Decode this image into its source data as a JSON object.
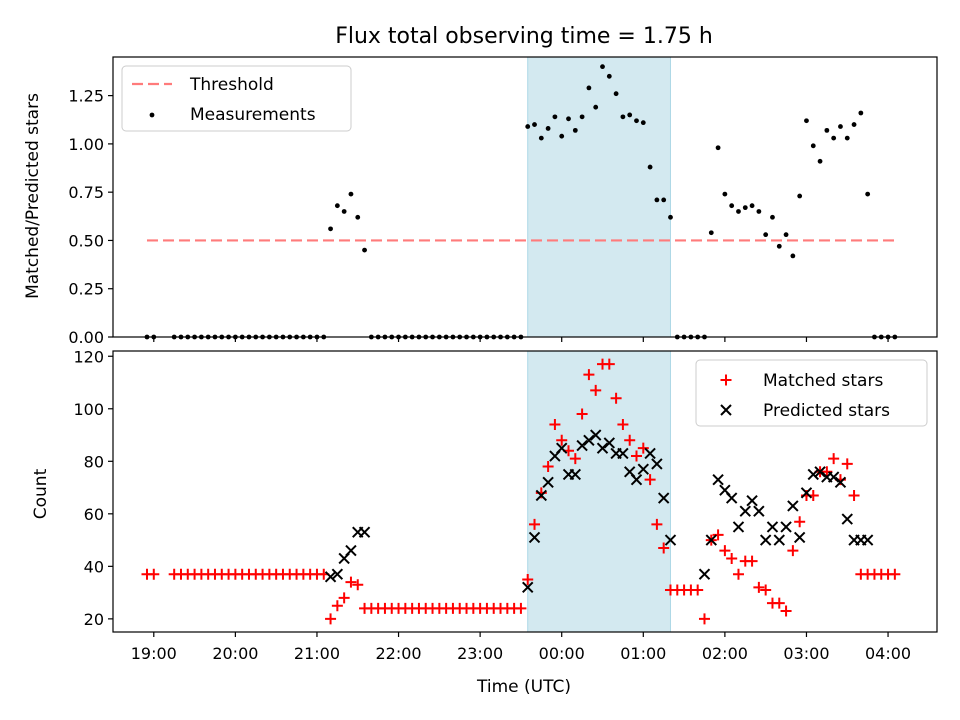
{
  "chart_data": [
    {
      "type": "scatter",
      "title": "Flux total observing time = 1.75 h",
      "ylabel": "Matched/Predicted stars",
      "xlabel": "",
      "x_unit": "hours since 19:00 UTC",
      "xlim": [
        -0.5,
        9.6
      ],
      "ylim": [
        0,
        1.45
      ],
      "yticks": [
        "0.00",
        "0.25",
        "0.50",
        "0.75",
        "1.00",
        "1.25"
      ],
      "legend": {
        "position": "top-left",
        "entries": [
          "Threshold",
          "Measurements"
        ]
      },
      "shaded_region": {
        "x_start": "23:35",
        "x_end": "01:20",
        "color": "#d3e9f0"
      },
      "threshold": {
        "name": "Threshold",
        "y": 0.5,
        "x_start": "18:55",
        "x_end": "04:05",
        "color": "#ff7b7b"
      },
      "series": [
        {
          "name": "Measurements",
          "color": "#000000",
          "x": [
            "18:55",
            "19:00",
            "19:15",
            "19:20",
            "19:25",
            "19:30",
            "19:35",
            "19:40",
            "19:45",
            "19:50",
            "19:55",
            "20:00",
            "20:05",
            "20:10",
            "20:15",
            "20:20",
            "20:25",
            "20:30",
            "20:35",
            "20:40",
            "20:45",
            "20:50",
            "20:55",
            "21:00",
            "21:05",
            "21:10",
            "21:15",
            "21:20",
            "21:25",
            "21:30",
            "21:35",
            "21:40",
            "21:45",
            "21:50",
            "21:55",
            "22:00",
            "22:05",
            "22:10",
            "22:15",
            "22:20",
            "22:25",
            "22:30",
            "22:35",
            "22:40",
            "22:45",
            "22:50",
            "22:55",
            "23:00",
            "23:05",
            "23:10",
            "23:15",
            "23:20",
            "23:25",
            "23:30",
            "23:35",
            "23:40",
            "23:45",
            "23:50",
            "23:55",
            "00:00",
            "00:05",
            "00:10",
            "00:15",
            "00:20",
            "00:25",
            "00:30",
            "00:35",
            "00:40",
            "00:45",
            "00:50",
            "00:55",
            "01:00",
            "01:05",
            "01:10",
            "01:15",
            "01:20",
            "01:25",
            "01:30",
            "01:35",
            "01:40",
            "01:45",
            "01:50",
            "01:55",
            "02:00",
            "02:05",
            "02:10",
            "02:15",
            "02:20",
            "02:25",
            "02:30",
            "02:35",
            "02:40",
            "02:45",
            "02:50",
            "02:55",
            "03:00",
            "03:05",
            "03:10",
            "03:15",
            "03:20",
            "03:25",
            "03:30",
            "03:35",
            "03:40",
            "03:45",
            "03:50",
            "03:55",
            "04:00",
            "04:05"
          ],
          "y": [
            0,
            0,
            0,
            0,
            0,
            0,
            0,
            0,
            0,
            0,
            0,
            0,
            0,
            0,
            0,
            0,
            0,
            0,
            0,
            0,
            0,
            0,
            0,
            0,
            0,
            0.56,
            0.68,
            0.65,
            0.74,
            0.62,
            0.45,
            0,
            0,
            0,
            0,
            0,
            0,
            0,
            0,
            0,
            0,
            0,
            0,
            0,
            0,
            0,
            0,
            0,
            0,
            0,
            0,
            0,
            0,
            0,
            1.09,
            1.1,
            1.03,
            1.08,
            1.14,
            1.04,
            1.13,
            1.07,
            1.14,
            1.29,
            1.19,
            1.4,
            1.35,
            1.26,
            1.14,
            1.15,
            1.12,
            1.11,
            0.88,
            0.71,
            0.71,
            0.62,
            0,
            0,
            0,
            0,
            0,
            0.54,
            0.98,
            0.74,
            0.68,
            0.65,
            0.67,
            0.68,
            0.65,
            0.53,
            0.62,
            0.47,
            0.53,
            0.42,
            0.73,
            1.12,
            0.99,
            0.91,
            1.07,
            1.03,
            1.09,
            1.03,
            1.1,
            1.16,
            0.74,
            0,
            0,
            0,
            0
          ]
        }
      ]
    },
    {
      "type": "scatter",
      "title": "",
      "ylabel": "Count",
      "xlabel": "Time (UTC)",
      "xlim": [
        -0.5,
        9.6
      ],
      "ylim": [
        15,
        122
      ],
      "yticks": [
        "20",
        "40",
        "60",
        "80",
        "100",
        "120"
      ],
      "xticks": [
        "19:00",
        "20:00",
        "21:00",
        "22:00",
        "23:00",
        "00:00",
        "01:00",
        "02:00",
        "03:00",
        "04:00"
      ],
      "legend": {
        "position": "top-right",
        "entries": [
          "Matched stars",
          "Predicted stars"
        ]
      },
      "shaded_region": {
        "x_start": "23:35",
        "x_end": "01:20",
        "color": "#d3e9f0"
      },
      "series": [
        {
          "name": "Matched stars",
          "marker": "+",
          "color": "#ff0000",
          "x": [
            "18:55",
            "19:00",
            "19:15",
            "19:20",
            "19:25",
            "19:30",
            "19:35",
            "19:40",
            "19:45",
            "19:50",
            "19:55",
            "20:00",
            "20:05",
            "20:10",
            "20:15",
            "20:20",
            "20:25",
            "20:30",
            "20:35",
            "20:40",
            "20:45",
            "20:50",
            "20:55",
            "21:00",
            "21:05",
            "21:10",
            "21:15",
            "21:20",
            "21:25",
            "21:30",
            "21:35",
            "21:40",
            "21:45",
            "21:50",
            "21:55",
            "22:00",
            "22:05",
            "22:10",
            "22:15",
            "22:20",
            "22:25",
            "22:30",
            "22:35",
            "22:40",
            "22:45",
            "22:50",
            "22:55",
            "23:00",
            "23:05",
            "23:10",
            "23:15",
            "23:20",
            "23:25",
            "23:30",
            "23:35",
            "23:40",
            "23:45",
            "23:50",
            "23:55",
            "00:00",
            "00:05",
            "00:10",
            "00:15",
            "00:20",
            "00:25",
            "00:30",
            "00:35",
            "00:40",
            "00:45",
            "00:50",
            "00:55",
            "01:00",
            "01:05",
            "01:10",
            "01:15",
            "01:20",
            "01:25",
            "01:30",
            "01:35",
            "01:40",
            "01:45",
            "01:50",
            "01:55",
            "02:00",
            "02:05",
            "02:10",
            "02:15",
            "02:20",
            "02:25",
            "02:30",
            "02:35",
            "02:40",
            "02:45",
            "02:50",
            "02:55",
            "03:00",
            "03:05",
            "03:10",
            "03:15",
            "03:20",
            "03:25",
            "03:30",
            "03:35",
            "03:40",
            "03:45",
            "03:50",
            "03:55",
            "04:00",
            "04:05"
          ],
          "y": [
            37,
            37,
            37,
            37,
            37,
            37,
            37,
            37,
            37,
            37,
            37,
            37,
            37,
            37,
            37,
            37,
            37,
            37,
            37,
            37,
            37,
            37,
            37,
            37,
            37,
            20,
            25,
            28,
            34,
            33,
            24,
            24,
            24,
            24,
            24,
            24,
            24,
            24,
            24,
            24,
            24,
            24,
            24,
            24,
            24,
            24,
            24,
            24,
            24,
            24,
            24,
            24,
            24,
            24,
            35,
            56,
            68,
            78,
            94,
            88,
            84,
            81,
            98,
            113,
            107,
            117,
            117,
            104,
            94,
            88,
            82,
            85,
            73,
            56,
            47,
            31,
            31,
            31,
            31,
            31,
            20,
            50,
            52,
            46,
            43,
            37,
            42,
            42,
            32,
            31,
            26,
            26,
            23,
            46,
            57,
            67,
            67,
            76,
            76,
            81,
            73,
            79,
            67,
            37,
            37,
            37,
            37,
            37,
            37
          ]
        },
        {
          "name": "Predicted stars",
          "marker": "x",
          "color": "#000000",
          "x": [
            "21:10",
            "21:15",
            "21:20",
            "21:25",
            "21:30",
            "21:35",
            "23:35",
            "23:40",
            "23:45",
            "23:50",
            "23:55",
            "00:00",
            "00:05",
            "00:10",
            "00:15",
            "00:20",
            "00:25",
            "00:30",
            "00:35",
            "00:40",
            "00:45",
            "00:50",
            "00:55",
            "01:00",
            "01:05",
            "01:10",
            "01:15",
            "01:20",
            "01:45",
            "01:50",
            "01:55",
            "02:00",
            "02:05",
            "02:10",
            "02:15",
            "02:20",
            "02:25",
            "02:30",
            "02:35",
            "02:40",
            "02:45",
            "02:50",
            "02:55",
            "03:00",
            "03:05",
            "03:10",
            "03:15",
            "03:20",
            "03:25",
            "03:30",
            "03:35",
            "03:40",
            "03:45"
          ],
          "y": [
            36,
            37,
            43,
            46,
            53,
            53,
            32,
            51,
            67,
            72,
            82,
            85,
            75,
            75,
            86,
            88,
            90,
            85,
            87,
            83,
            83,
            76,
            73,
            77,
            83,
            79,
            66,
            50,
            37,
            50,
            73,
            69,
            66,
            55,
            61,
            65,
            61,
            50,
            55,
            50,
            55,
            63,
            51,
            68,
            75,
            76,
            74,
            74,
            72,
            58,
            50,
            50,
            50
          ]
        }
      ]
    }
  ]
}
